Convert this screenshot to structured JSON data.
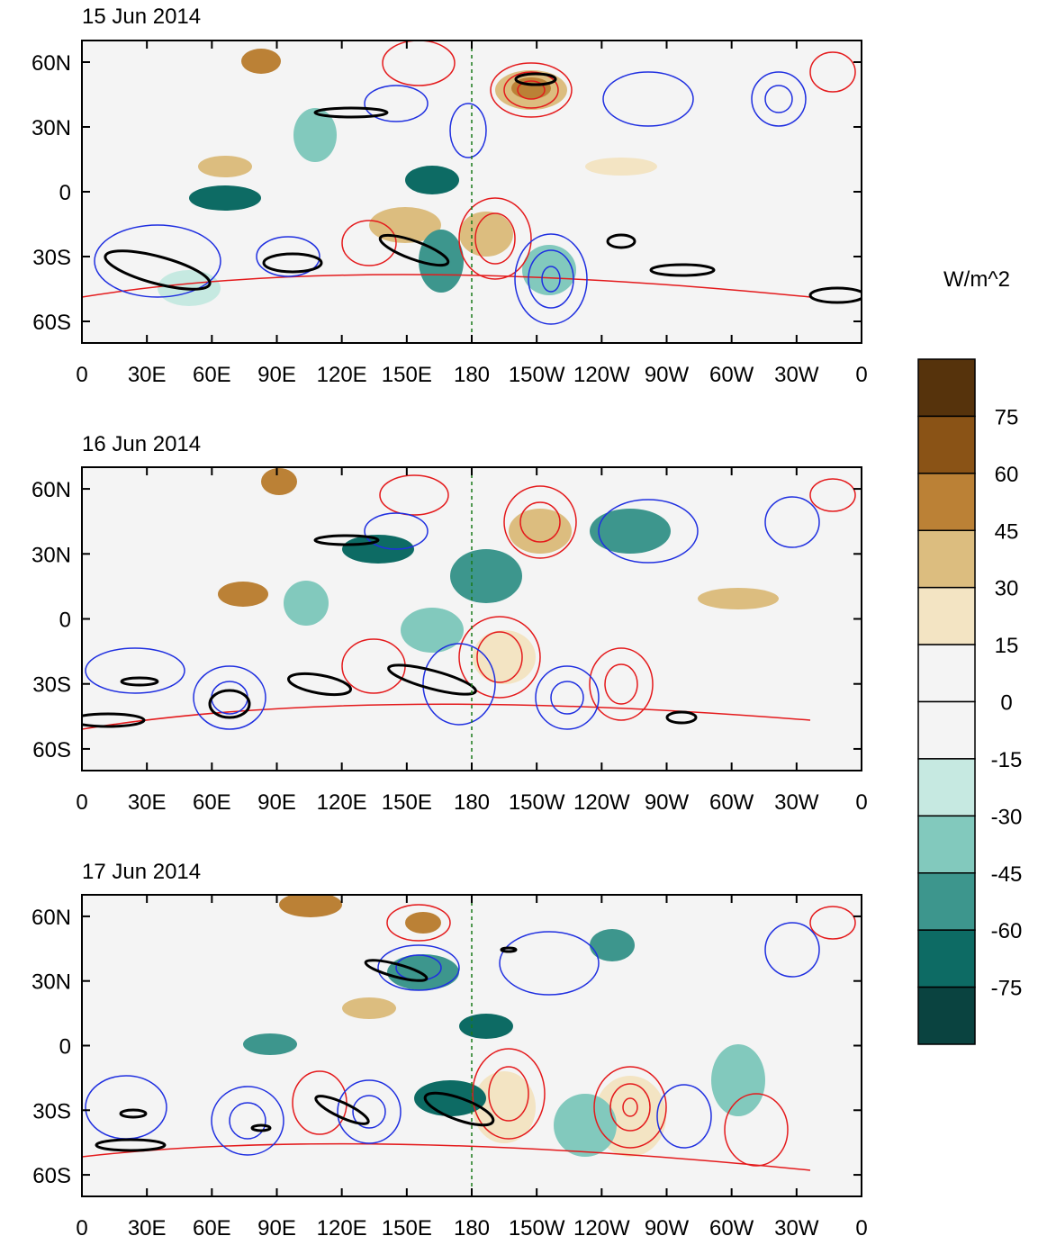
{
  "figure": {
    "panels": [
      {
        "title": "15 Jun 2014"
      },
      {
        "title": "16 Jun 2014"
      },
      {
        "title": "17 Jun 2014"
      }
    ],
    "lon_labels": [
      "0",
      "30E",
      "60E",
      "90E",
      "120E",
      "150E",
      "180",
      "150W",
      "120W",
      "90W",
      "60W",
      "30W",
      "0"
    ],
    "lat_labels": [
      "60N",
      "30N",
      "0",
      "30S",
      "60S"
    ],
    "colorbar": {
      "units": "W/m^2",
      "labels": [
        "75",
        "60",
        "45",
        "30",
        "15",
        "0",
        "-15",
        "-30",
        "-45",
        "-60",
        "-75"
      ],
      "colors": [
        "#56330c",
        "#8a5316",
        "#bb8136",
        "#dcbd7f",
        "#f3e4c3",
        "#f4f4f4",
        "#f4f4f4",
        "#c6e9e1",
        "#82c9bd",
        "#3d968d",
        "#0d6b64",
        "#0a4340"
      ]
    },
    "contour_colors": {
      "positive": "#e41a1c",
      "negative": "#1f2fe0",
      "coast": "#1a7a1a",
      "thick": "#000000"
    }
  }
}
